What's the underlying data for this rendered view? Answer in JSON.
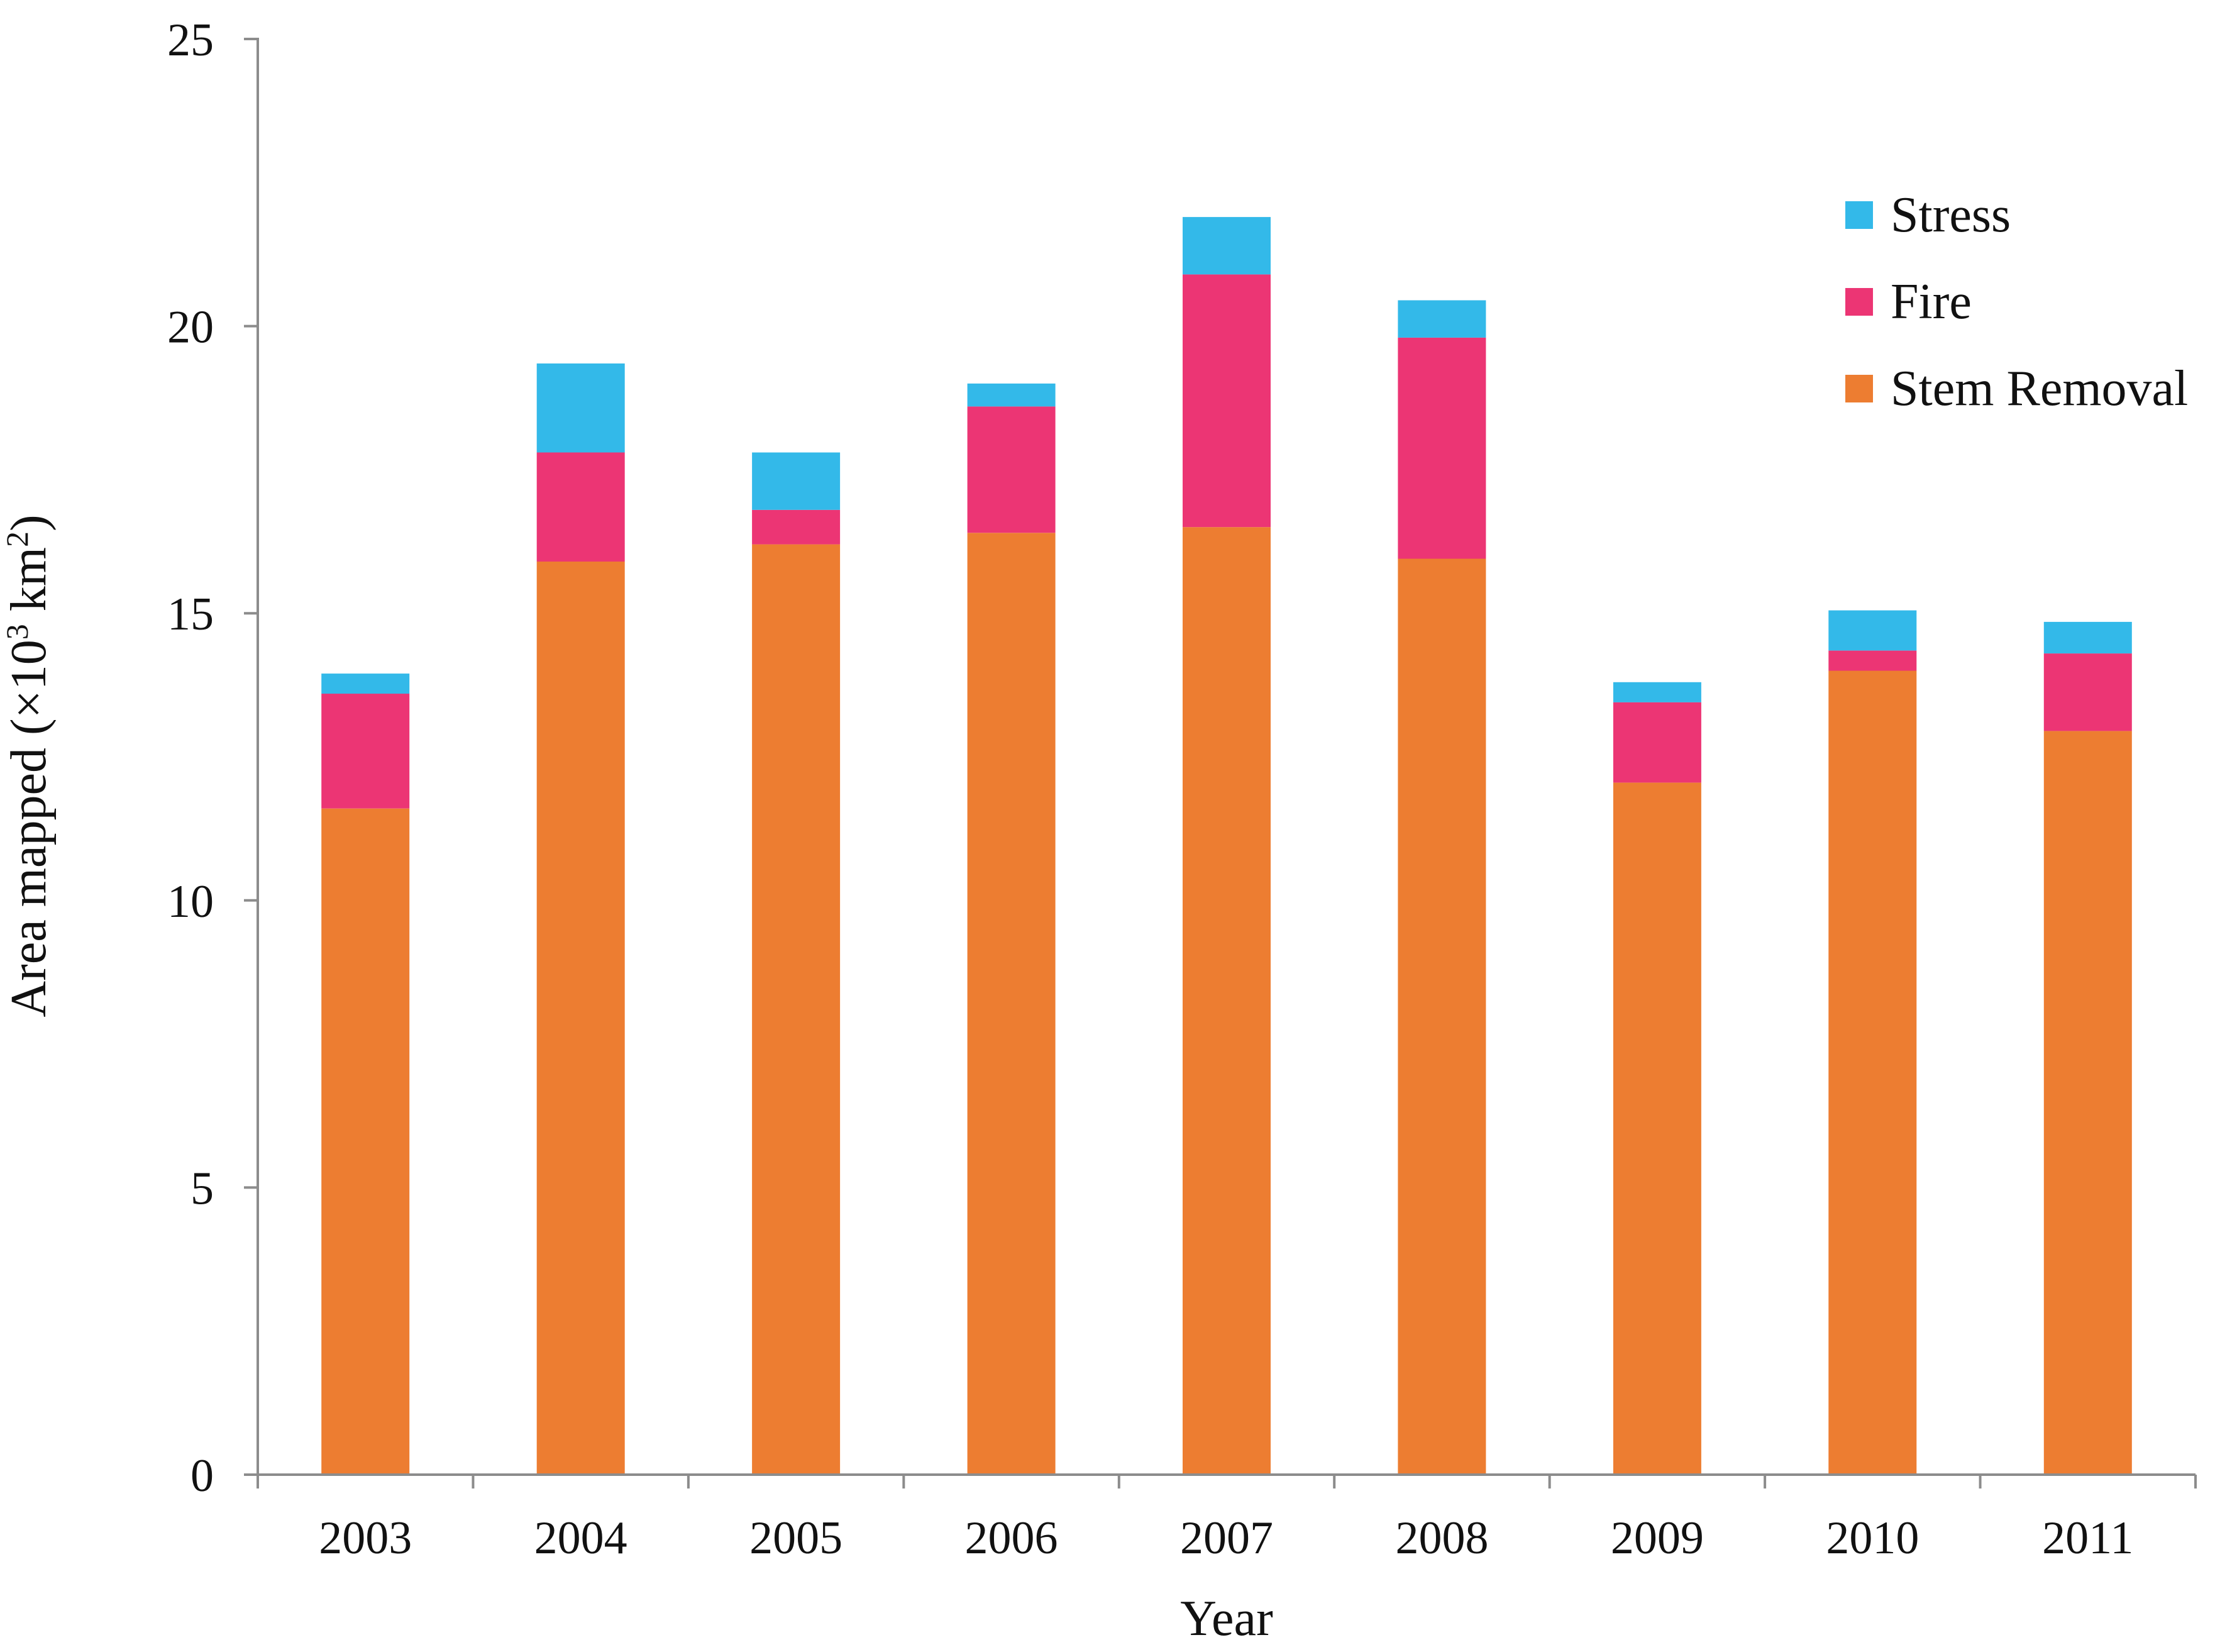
{
  "chart_data": {
    "type": "bar",
    "stacked": true,
    "title": "",
    "xlabel": "Year",
    "ylabel": {
      "prefix": "Area mapped (×10",
      "sup1": "3",
      "mid": " km",
      "sup2": "2",
      "suffix": ")"
    },
    "ylim": [
      0,
      25
    ],
    "yticks": [
      0,
      5,
      10,
      15,
      20,
      25
    ],
    "categories": [
      "2003",
      "2004",
      "2005",
      "2006",
      "2007",
      "2008",
      "2009",
      "2010",
      "2011"
    ],
    "series": [
      {
        "name": "Stem Removal",
        "color": "#ED7D31",
        "values": [
          11.6,
          15.9,
          16.2,
          16.4,
          16.5,
          15.95,
          12.05,
          14.0,
          12.95
        ]
      },
      {
        "name": "Fire",
        "color": "#EC3574",
        "values": [
          2.0,
          1.9,
          0.6,
          2.2,
          4.4,
          3.85,
          1.4,
          0.35,
          1.35
        ]
      },
      {
        "name": "Stress",
        "color": "#33B9E9",
        "values": [
          0.35,
          1.55,
          1.0,
          0.4,
          1.0,
          0.65,
          0.35,
          0.7,
          0.55
        ]
      }
    ],
    "legend": {
      "position": "top-right",
      "order": [
        "Stress",
        "Fire",
        "Stem Removal"
      ]
    },
    "grid": false
  }
}
